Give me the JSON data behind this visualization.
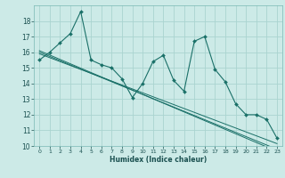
{
  "xlabel": "Humidex (Indice chaleur)",
  "bg_color": "#cceae7",
  "grid_color": "#aad4d0",
  "line_color": "#1a7068",
  "xlim": [
    -0.5,
    23.5
  ],
  "ylim": [
    10,
    19
  ],
  "yticks": [
    10,
    11,
    12,
    13,
    14,
    15,
    16,
    17,
    18
  ],
  "xticks": [
    0,
    1,
    2,
    3,
    4,
    5,
    6,
    7,
    8,
    9,
    10,
    11,
    12,
    13,
    14,
    15,
    16,
    17,
    18,
    19,
    20,
    21,
    22,
    23
  ],
  "series1": [
    15.5,
    16.0,
    16.6,
    17.2,
    18.6,
    15.5,
    15.2,
    15.0,
    14.3,
    13.1,
    14.0,
    15.4,
    15.8,
    14.2,
    13.5,
    16.7,
    17.0,
    14.9,
    14.1,
    12.7,
    12.0,
    12.0,
    11.7,
    10.5
  ],
  "trend1": [
    15.9,
    15.65,
    15.4,
    15.15,
    14.9,
    14.65,
    14.4,
    14.15,
    13.9,
    13.65,
    13.4,
    13.15,
    12.9,
    12.65,
    12.4,
    12.15,
    11.9,
    11.65,
    11.4,
    11.15,
    10.9,
    10.65,
    10.4,
    10.15
  ],
  "trend2": [
    16.0,
    15.73,
    15.46,
    15.19,
    14.92,
    14.65,
    14.38,
    14.11,
    13.84,
    13.57,
    13.3,
    13.03,
    12.76,
    12.49,
    12.22,
    11.95,
    11.68,
    11.41,
    11.14,
    10.87,
    10.6,
    10.33,
    10.06,
    9.79
  ],
  "trend3": [
    16.1,
    15.82,
    15.54,
    15.26,
    14.98,
    14.7,
    14.42,
    14.14,
    13.86,
    13.58,
    13.3,
    13.02,
    12.74,
    12.46,
    12.18,
    11.9,
    11.62,
    11.34,
    11.06,
    10.78,
    10.5,
    10.22,
    9.94,
    9.66
  ]
}
